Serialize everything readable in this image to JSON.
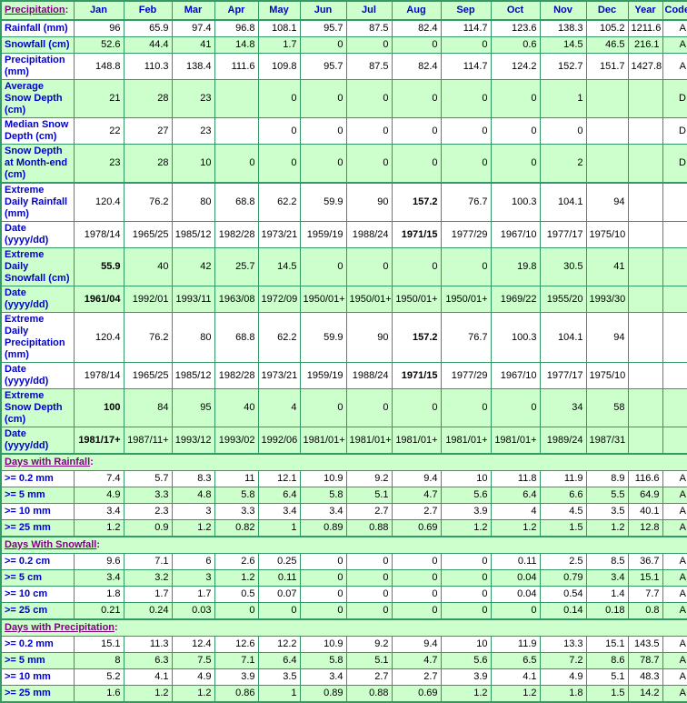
{
  "colors": {
    "row_shade_green": "#CCFFCC",
    "border_green": "#339966",
    "label_blue": "#0000CC",
    "section_link_purple": "#800080",
    "data_text": "#000000",
    "row_plain": "#FFFFFF"
  },
  "table": {
    "corner": {
      "text": "Precipitation",
      "suffix": ":"
    },
    "columns": [
      "Jan",
      "Feb",
      "Mar",
      "Apr",
      "May",
      "Jun",
      "Jul",
      "Aug",
      "Sep",
      "Oct",
      "Nov",
      "Dec",
      "Year",
      "Code"
    ],
    "sections": [
      {
        "title": null,
        "rows": [
          {
            "label": "Rainfall (mm)",
            "shade": false,
            "bold_col": null,
            "values": [
              "96",
              "65.9",
              "97.4",
              "96.8",
              "108.1",
              "95.7",
              "87.5",
              "82.4",
              "114.7",
              "123.6",
              "138.3",
              "105.2",
              "1211.6",
              "A"
            ]
          },
          {
            "label": "Snowfall (cm)",
            "shade": true,
            "bold_col": null,
            "values": [
              "52.6",
              "44.4",
              "41",
              "14.8",
              "1.7",
              "0",
              "0",
              "0",
              "0",
              "0.6",
              "14.5",
              "46.5",
              "216.1",
              "A"
            ]
          },
          {
            "label": "Precipitation (mm)",
            "shade": false,
            "bold_col": null,
            "values": [
              "148.8",
              "110.3",
              "138.4",
              "111.6",
              "109.8",
              "95.7",
              "87.5",
              "82.4",
              "114.7",
              "124.2",
              "152.7",
              "151.7",
              "1427.8",
              "A"
            ]
          },
          {
            "label": "Average Snow Depth (cm)",
            "shade": true,
            "bold_col": null,
            "values": [
              "21",
              "28",
              "23",
              "",
              "0",
              "0",
              "0",
              "0",
              "0",
              "0",
              "1",
              "",
              "",
              "D"
            ]
          },
          {
            "label": "Median Snow Depth (cm)",
            "shade": false,
            "bold_col": null,
            "values": [
              "22",
              "27",
              "23",
              "",
              "0",
              "0",
              "0",
              "0",
              "0",
              "0",
              "0",
              "",
              "",
              "D"
            ]
          },
          {
            "label": "Snow Depth at Month-end (cm)",
            "shade": true,
            "bold_col": null,
            "values": [
              "23",
              "28",
              "10",
              "0",
              "0",
              "0",
              "0",
              "0",
              "0",
              "0",
              "2",
              "",
              "",
              "D"
            ]
          }
        ]
      },
      {
        "title": null,
        "rows": [
          {
            "label": "Extreme Daily Rainfall (mm)",
            "shade": false,
            "bold_col": 7,
            "values": [
              "120.4",
              "76.2",
              "80",
              "68.8",
              "62.2",
              "59.9",
              "90",
              "157.2",
              "76.7",
              "100.3",
              "104.1",
              "94",
              "",
              ""
            ]
          },
          {
            "label": "Date (yyyy/dd)",
            "shade": false,
            "bold_col": 7,
            "values": [
              "1978/14",
              "1965/25",
              "1985/12",
              "1982/28",
              "1973/21",
              "1959/19",
              "1988/24",
              "1971/15",
              "1977/29",
              "1967/10",
              "1977/17",
              "1975/10",
              "",
              ""
            ]
          },
          {
            "label": "Extreme Daily Snowfall (cm)",
            "shade": true,
            "bold_col": 0,
            "values": [
              "55.9",
              "40",
              "42",
              "25.7",
              "14.5",
              "0",
              "0",
              "0",
              "0",
              "19.8",
              "30.5",
              "41",
              "",
              ""
            ]
          },
          {
            "label": "Date (yyyy/dd)",
            "shade": true,
            "bold_col": 0,
            "values": [
              "1961/04",
              "1992/01",
              "1993/11",
              "1963/08",
              "1972/09",
              "1950/01+",
              "1950/01+",
              "1950/01+",
              "1950/01+",
              "1969/22",
              "1955/20",
              "1993/30",
              "",
              ""
            ]
          },
          {
            "label": "Extreme Daily Precipitation (mm)",
            "shade": false,
            "bold_col": 7,
            "values": [
              "120.4",
              "76.2",
              "80",
              "68.8",
              "62.2",
              "59.9",
              "90",
              "157.2",
              "76.7",
              "100.3",
              "104.1",
              "94",
              "",
              ""
            ]
          },
          {
            "label": "Date (yyyy/dd)",
            "shade": false,
            "bold_col": 7,
            "values": [
              "1978/14",
              "1965/25",
              "1985/12",
              "1982/28",
              "1973/21",
              "1959/19",
              "1988/24",
              "1971/15",
              "1977/29",
              "1967/10",
              "1977/17",
              "1975/10",
              "",
              ""
            ]
          },
          {
            "label": "Extreme Snow Depth (cm)",
            "shade": true,
            "bold_col": 0,
            "values": [
              "100",
              "84",
              "95",
              "40",
              "4",
              "0",
              "0",
              "0",
              "0",
              "0",
              "34",
              "58",
              "",
              ""
            ]
          },
          {
            "label": "Date (yyyy/dd)",
            "shade": true,
            "bold_col": 0,
            "values": [
              "1981/17+",
              "1987/11+",
              "1993/12",
              "1993/02",
              "1992/06",
              "1981/01+",
              "1981/01+",
              "1981/01+",
              "1981/01+",
              "1981/01+",
              "1989/24",
              "1987/31",
              "",
              ""
            ]
          }
        ]
      },
      {
        "title": "Days with Rainfall",
        "suffix": ":",
        "rows": [
          {
            "label": ">= 0.2 mm",
            "shade": false,
            "bold_col": null,
            "values": [
              "7.4",
              "5.7",
              "8.3",
              "11",
              "12.1",
              "10.9",
              "9.2",
              "9.4",
              "10",
              "11.8",
              "11.9",
              "8.9",
              "116.6",
              "A"
            ]
          },
          {
            "label": ">= 5 mm",
            "shade": true,
            "bold_col": null,
            "values": [
              "4.9",
              "3.3",
              "4.8",
              "5.8",
              "6.4",
              "5.8",
              "5.1",
              "4.7",
              "5.6",
              "6.4",
              "6.6",
              "5.5",
              "64.9",
              "A"
            ]
          },
          {
            "label": ">= 10 mm",
            "shade": false,
            "bold_col": null,
            "values": [
              "3.4",
              "2.3",
              "3",
              "3.3",
              "3.4",
              "3.4",
              "2.7",
              "2.7",
              "3.9",
              "4",
              "4.5",
              "3.5",
              "40.1",
              "A"
            ]
          },
          {
            "label": ">= 25 mm",
            "shade": true,
            "bold_col": null,
            "values": [
              "1.2",
              "0.9",
              "1.2",
              "0.82",
              "1",
              "0.89",
              "0.88",
              "0.69",
              "1.2",
              "1.2",
              "1.5",
              "1.2",
              "12.8",
              "A"
            ]
          }
        ]
      },
      {
        "title": "Days With Snowfall",
        "suffix": ":",
        "rows": [
          {
            "label": ">= 0.2 cm",
            "shade": false,
            "bold_col": null,
            "values": [
              "9.6",
              "7.1",
              "6",
              "2.6",
              "0.25",
              "0",
              "0",
              "0",
              "0",
              "0.11",
              "2.5",
              "8.5",
              "36.7",
              "A"
            ]
          },
          {
            "label": ">= 5 cm",
            "shade": true,
            "bold_col": null,
            "values": [
              "3.4",
              "3.2",
              "3",
              "1.2",
              "0.11",
              "0",
              "0",
              "0",
              "0",
              "0.04",
              "0.79",
              "3.4",
              "15.1",
              "A"
            ]
          },
          {
            "label": ">= 10 cm",
            "shade": false,
            "bold_col": null,
            "values": [
              "1.8",
              "1.7",
              "1.7",
              "0.5",
              "0.07",
              "0",
              "0",
              "0",
              "0",
              "0.04",
              "0.54",
              "1.4",
              "7.7",
              "A"
            ]
          },
          {
            "label": ">= 25 cm",
            "shade": true,
            "bold_col": null,
            "values": [
              "0.21",
              "0.24",
              "0.03",
              "0",
              "0",
              "0",
              "0",
              "0",
              "0",
              "0",
              "0.14",
              "0.18",
              "0.8",
              "A"
            ]
          }
        ]
      },
      {
        "title": "Days with Precipitation",
        "suffix": ":",
        "rows": [
          {
            "label": ">= 0.2 mm",
            "shade": false,
            "bold_col": null,
            "values": [
              "15.1",
              "11.3",
              "12.4",
              "12.6",
              "12.2",
              "10.9",
              "9.2",
              "9.4",
              "10",
              "11.9",
              "13.3",
              "15.1",
              "143.5",
              "A"
            ]
          },
          {
            "label": ">= 5 mm",
            "shade": true,
            "bold_col": null,
            "values": [
              "8",
              "6.3",
              "7.5",
              "7.1",
              "6.4",
              "5.8",
              "5.1",
              "4.7",
              "5.6",
              "6.5",
              "7.2",
              "8.6",
              "78.7",
              "A"
            ]
          },
          {
            "label": ">= 10 mm",
            "shade": false,
            "bold_col": null,
            "values": [
              "5.2",
              "4.1",
              "4.9",
              "3.9",
              "3.5",
              "3.4",
              "2.7",
              "2.7",
              "3.9",
              "4.1",
              "4.9",
              "5.1",
              "48.3",
              "A"
            ]
          },
          {
            "label": ">= 25 mm",
            "shade": true,
            "bold_col": null,
            "values": [
              "1.6",
              "1.2",
              "1.2",
              "0.86",
              "1",
              "0.89",
              "0.88",
              "0.69",
              "1.2",
              "1.2",
              "1.8",
              "1.5",
              "14.2",
              "A"
            ]
          }
        ]
      }
    ]
  }
}
